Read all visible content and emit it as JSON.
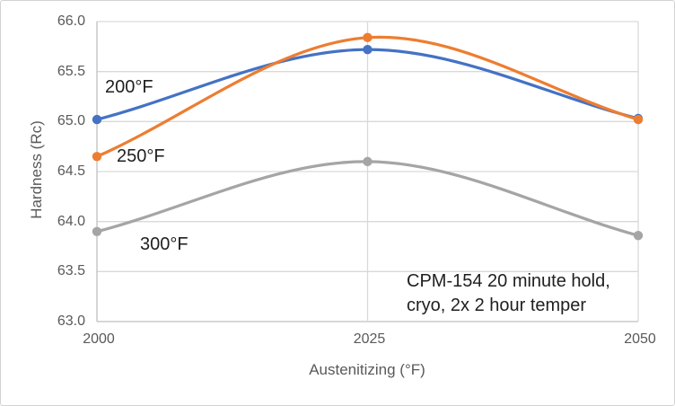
{
  "chart_data": {
    "type": "line",
    "title": "",
    "xlabel": "Austenitizing (°F)",
    "ylabel": "Hardness (Rc)",
    "x": [
      2000,
      2025,
      2050
    ],
    "xtick_labels": [
      "2000",
      "2025",
      "2050"
    ],
    "ylim": [
      63.0,
      66.0
    ],
    "ytick_labels": [
      "66.0",
      "65.5",
      "65.0",
      "64.5",
      "64.0",
      "63.5",
      "63.0"
    ],
    "grid": true,
    "smooth_lines": true,
    "legend_position": "none",
    "series": [
      {
        "name": "200°F",
        "color": "#4472C4",
        "values": [
          65.02,
          65.72,
          65.03
        ]
      },
      {
        "name": "250°F",
        "color": "#ED7D31",
        "values": [
          64.65,
          65.84,
          65.02
        ]
      },
      {
        "name": "300°F",
        "color": "#A5A5A5",
        "values": [
          63.9,
          64.6,
          63.86
        ]
      }
    ],
    "annotation": "CPM-154 20 minute hold,\ncryo, 2x 2 hour temper"
  },
  "colors": {
    "gridline": "#D9D9D9",
    "axis_line": "#BFBFBF",
    "tick_text": "#595959",
    "label_text": "#1f1f1f"
  }
}
